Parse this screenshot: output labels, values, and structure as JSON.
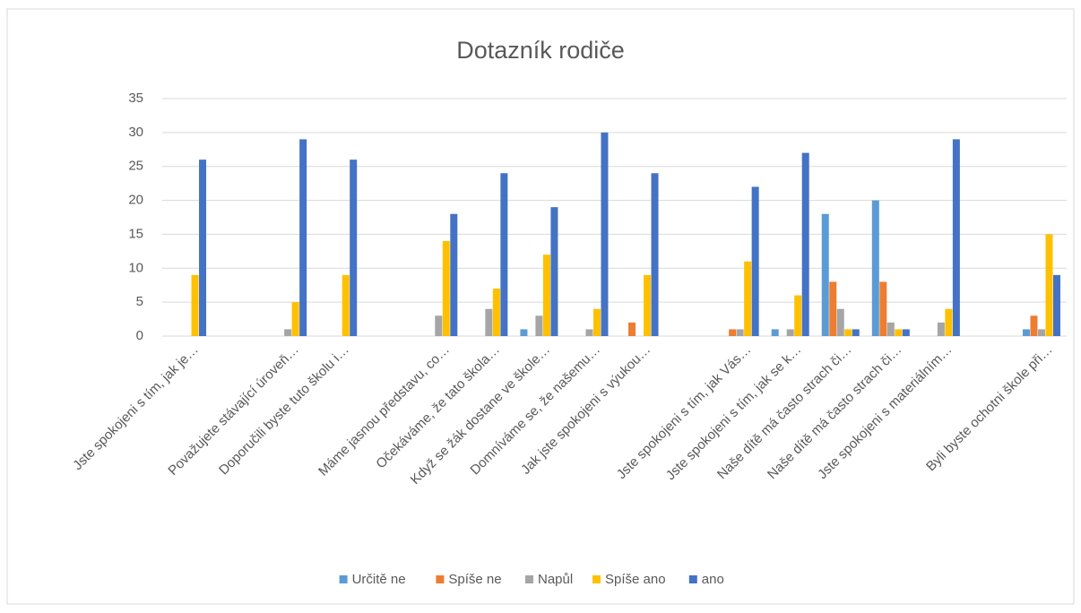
{
  "chart_data": {
    "type": "bar",
    "title": "Dotazník rodiče",
    "categories": [
      "Jste spokojeni s tím, jak je…",
      null,
      "Považujete stávající úroveň…",
      "Doporučili byste tuto školu i…",
      null,
      "Máme jasnou představu, co…",
      "Očekáváme, že tato škola…",
      "Když se žák dostane ve škole…",
      "Domníváme se, že našemu…",
      "Jak jste spokojeni s výukou…",
      null,
      "Jste spokojeni s tím, jak Vás…",
      "Jste spokojeni s tím, jak se k…",
      "Naše dítě má často strach či…",
      "Naše dítě má často strach či…",
      "Jste spokojeni s materiálním…",
      null,
      "Byli byste ochotni škole při…"
    ],
    "series": [
      {
        "name": "Určitě ne",
        "color": "#5b9bd5",
        "values": [
          0,
          null,
          0,
          0,
          null,
          0,
          0,
          1,
          0,
          0,
          null,
          0,
          1,
          18,
          20,
          0,
          null,
          1
        ]
      },
      {
        "name": "Spíše ne",
        "color": "#ed7d31",
        "values": [
          0,
          null,
          0,
          0,
          null,
          0,
          0,
          0,
          0,
          2,
          null,
          1,
          0,
          8,
          8,
          0,
          null,
          3
        ]
      },
      {
        "name": "Napůl",
        "color": "#a5a5a5",
        "values": [
          0,
          null,
          1,
          0,
          null,
          3,
          4,
          3,
          1,
          0,
          null,
          1,
          1,
          4,
          2,
          2,
          null,
          1
        ]
      },
      {
        "name": "Spíše ano",
        "color": "#ffc000",
        "values": [
          9,
          null,
          5,
          9,
          null,
          14,
          7,
          12,
          4,
          9,
          null,
          11,
          6,
          1,
          1,
          4,
          null,
          15
        ]
      },
      {
        "name": "ano",
        "color": "#4472c4",
        "values": [
          26,
          null,
          29,
          26,
          null,
          18,
          24,
          19,
          30,
          24,
          null,
          22,
          27,
          1,
          1,
          29,
          null,
          9
        ]
      }
    ],
    "ylim": [
      0,
      35
    ],
    "yticks": [
      0,
      5,
      10,
      15,
      20,
      25,
      30,
      35
    ],
    "grid": true,
    "legend": "bottom"
  }
}
